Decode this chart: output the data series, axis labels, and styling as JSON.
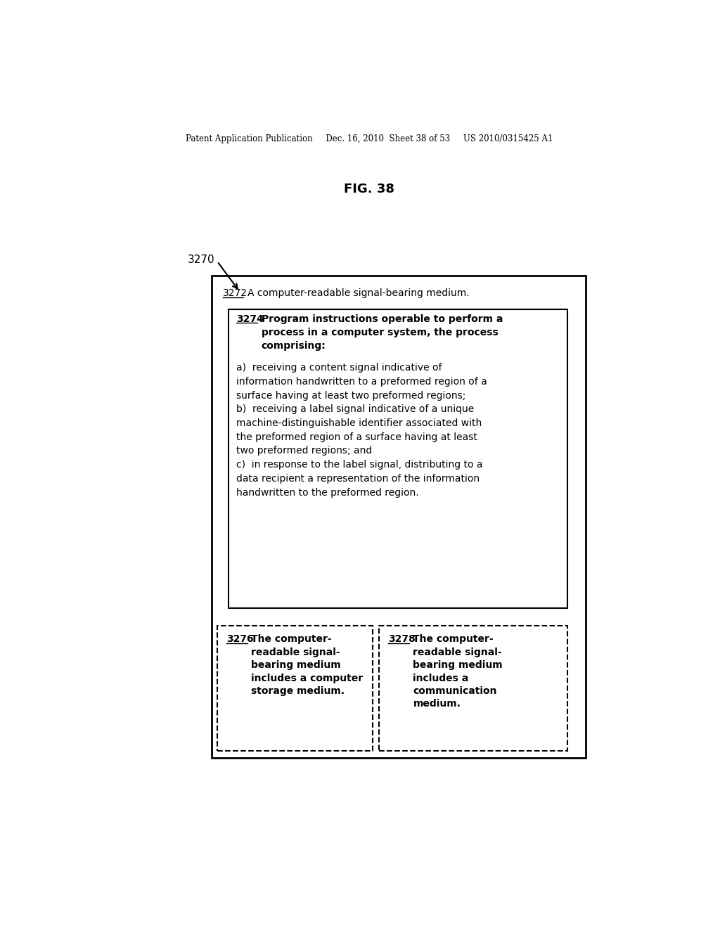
{
  "bg_color": "#ffffff",
  "header_text": "Patent Application Publication     Dec. 16, 2010  Sheet 38 of 53     US 2010/0315425 A1",
  "fig_label": "FIG. 38",
  "label_3270": "3270",
  "label_3272": "3272",
  "text_3272": "A computer-readable signal-bearing medium.",
  "label_3274": "3274",
  "text_3274_bold": "Program instructions operable to perform a\nprocess in a computer system, the process\ncomprising:",
  "text_3274_body": "a)  receiving a content signal indicative of\ninformation handwritten to a preformed region of a\nsurface having at least two preformed regions;\nb)  receiving a label signal indicative of a unique\nmachine-distinguishable identifier associated with\nthe preformed region of a surface having at least\ntwo preformed regions; and\nc)  in response to the label signal, distributing to a\ndata recipient a representation of the information\nhandwritten to the preformed region.",
  "label_3276": "3276",
  "text_3276": "The computer-\nreadable signal-\nbearing medium\nincludes a computer\nstorage medium.",
  "label_3278": "3278",
  "text_3278": "The computer-\nreadable signal-\nbearing medium\nincludes a\ncommunication\nmedium."
}
